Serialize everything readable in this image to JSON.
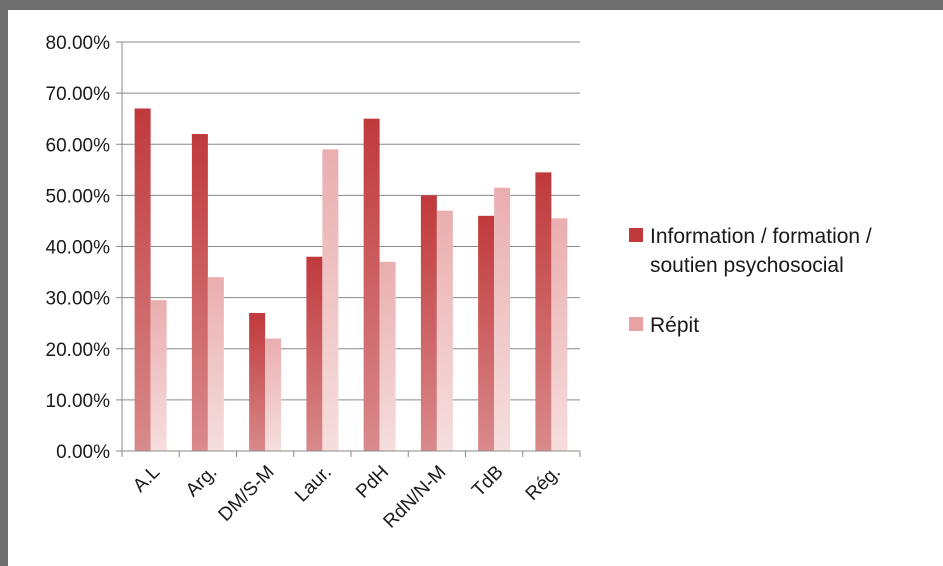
{
  "chart_data": {
    "type": "bar",
    "categories": [
      "A.L",
      "Arg.",
      "DM/S-M",
      "Laur.",
      "PdH",
      "RdN/N-M",
      "TdB",
      "Rég."
    ],
    "series": [
      {
        "name": "Information / formation / soutien psychosocial",
        "values": [
          0.67,
          0.62,
          0.27,
          0.38,
          0.65,
          0.5,
          0.46,
          0.545
        ],
        "color": "#c0393b"
      },
      {
        "name": "Répit",
        "values": [
          0.295,
          0.34,
          0.22,
          0.59,
          0.37,
          0.47,
          0.515,
          0.455
        ],
        "color": "#e9a3a4"
      }
    ],
    "ylim": [
      0,
      0.8
    ],
    "yticks": [
      "0.00%",
      "10.00%",
      "20.00%",
      "30.00%",
      "40.00%",
      "50.00%",
      "60.00%",
      "70.00%",
      "80.00%"
    ],
    "grid": true,
    "legend_position": "right",
    "title": "",
    "xlabel": "",
    "ylabel": ""
  },
  "legend": {
    "line1": "Information / formation /",
    "line2": "soutien psychosocial",
    "repit": "Répit"
  }
}
